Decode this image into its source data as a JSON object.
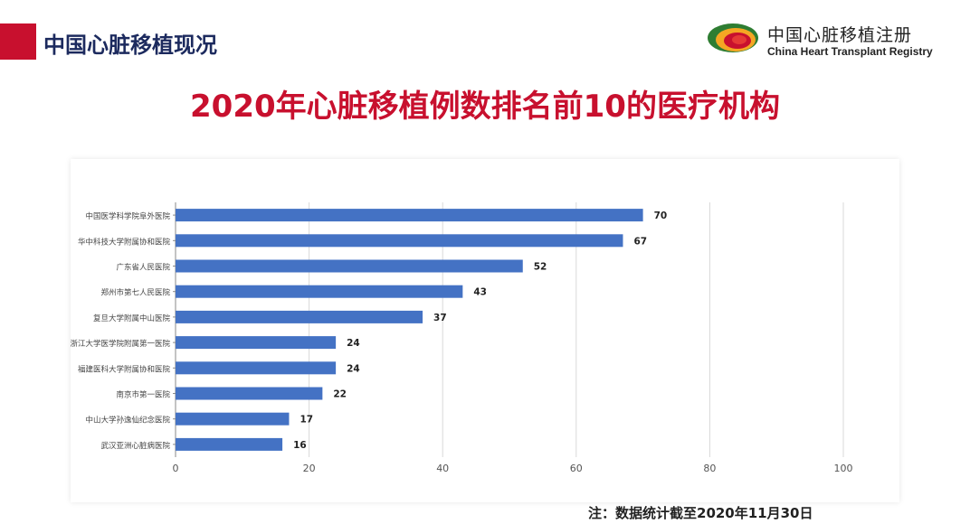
{
  "header": {
    "section_title": "中国心脏移植现况",
    "logo_cn": "中国心脏移植注册",
    "logo_en": "China Heart Transplant Registry",
    "logo_icon": "heart-registry-logo-icon",
    "accent_color": "#c8102e"
  },
  "chart_data": {
    "type": "bar",
    "orientation": "horizontal",
    "title": "2020年心脏移植例数排名前10的医疗机构",
    "categories": [
      "中国医学科学院阜外医院",
      "华中科技大学附属协和医院",
      "广东省人民医院",
      "郑州市第七人民医院",
      "复旦大学附属中山医院",
      "浙江大学医学院附属第一医院",
      "福建医科大学附属协和医院",
      "南京市第一医院",
      "中山大学孙逸仙纪念医院",
      "武汉亚洲心脏病医院"
    ],
    "values": [
      70,
      67,
      52,
      43,
      37,
      24,
      24,
      22,
      17,
      16
    ],
    "xlim": [
      0,
      100
    ],
    "xticks": [
      0,
      20,
      40,
      60,
      80,
      100
    ],
    "bar_color": "#4472c4",
    "grid": true,
    "legend": "none"
  },
  "note": "注：数据统计截至2020年11月30日"
}
